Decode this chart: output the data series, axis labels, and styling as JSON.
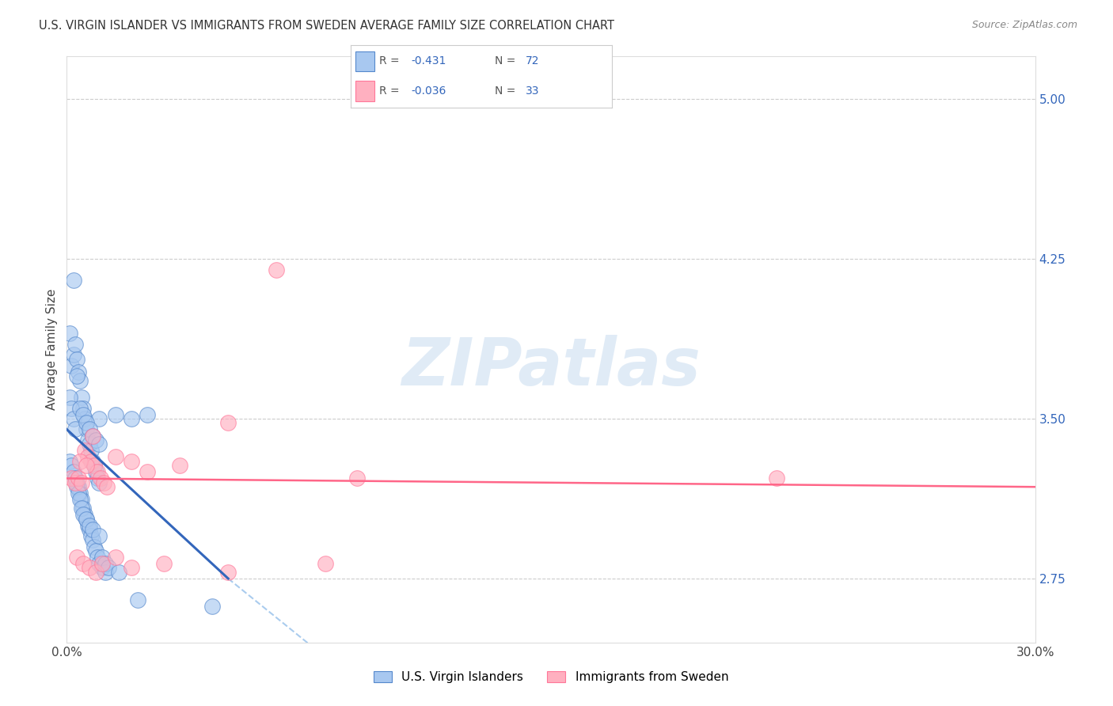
{
  "title": "U.S. VIRGIN ISLANDER VS IMMIGRANTS FROM SWEDEN AVERAGE FAMILY SIZE CORRELATION CHART",
  "source": "Source: ZipAtlas.com",
  "ylabel": "Average Family Size",
  "y_ticks_right": [
    2.75,
    3.5,
    4.25,
    5.0
  ],
  "xlim": [
    0.0,
    30.0
  ],
  "ylim": [
    2.45,
    5.2
  ],
  "legend_blue_r": "-0.431",
  "legend_blue_n": "72",
  "legend_pink_r": "-0.036",
  "legend_pink_n": "33",
  "legend_label_blue": "U.S. Virgin Islanders",
  "legend_label_pink": "Immigrants from Sweden",
  "blue_color": "#A8C8F0",
  "pink_color": "#FFB0C0",
  "blue_edge_color": "#5588CC",
  "pink_edge_color": "#FF7799",
  "blue_line_color": "#3366BB",
  "pink_line_color": "#FF6688",
  "blue_scatter_x": [
    0.1,
    0.15,
    0.2,
    0.25,
    0.3,
    0.35,
    0.4,
    0.45,
    0.5,
    0.55,
    0.6,
    0.65,
    0.7,
    0.75,
    0.8,
    0.85,
    0.9,
    0.95,
    1.0,
    0.1,
    0.15,
    0.2,
    0.25,
    0.3,
    0.35,
    0.4,
    0.45,
    0.5,
    0.55,
    0.6,
    0.65,
    0.7,
    0.75,
    0.8,
    0.85,
    0.9,
    0.95,
    1.0,
    1.1,
    1.2,
    0.1,
    0.15,
    0.2,
    0.25,
    0.3,
    0.35,
    0.4,
    0.45,
    0.5,
    0.6,
    0.7,
    0.8,
    1.0,
    1.5,
    2.0,
    2.5,
    1.0,
    0.2,
    0.3,
    0.4,
    0.5,
    0.6,
    0.7,
    0.8,
    0.9,
    1.0,
    1.1,
    1.2,
    1.3,
    1.6,
    2.2,
    4.5
  ],
  "blue_scatter_y": [
    3.9,
    3.75,
    3.8,
    3.85,
    3.78,
    3.72,
    3.68,
    3.6,
    3.55,
    3.5,
    3.45,
    3.4,
    3.38,
    3.35,
    3.3,
    3.28,
    3.25,
    3.22,
    3.2,
    3.6,
    3.55,
    3.5,
    3.45,
    3.2,
    3.18,
    3.15,
    3.12,
    3.08,
    3.05,
    3.03,
    3.0,
    2.98,
    2.95,
    2.93,
    2.9,
    2.88,
    2.85,
    2.82,
    2.8,
    2.78,
    3.3,
    3.28,
    3.25,
    3.22,
    3.18,
    3.15,
    3.12,
    3.08,
    3.05,
    3.03,
    3.0,
    2.98,
    2.95,
    3.52,
    3.5,
    3.52,
    3.5,
    4.15,
    3.7,
    3.55,
    3.52,
    3.48,
    3.45,
    3.42,
    3.4,
    3.38,
    2.85,
    2.82,
    2.8,
    2.78,
    2.65,
    2.62
  ],
  "pink_scatter_x": [
    0.15,
    0.25,
    0.35,
    0.45,
    0.55,
    0.65,
    0.75,
    0.85,
    0.95,
    1.05,
    1.15,
    1.25,
    1.5,
    2.0,
    2.5,
    3.5,
    5.0,
    6.5,
    9.0,
    0.3,
    0.5,
    0.7,
    0.9,
    1.1,
    1.5,
    2.0,
    3.0,
    5.0,
    8.0,
    22.0,
    0.4,
    0.6,
    0.8
  ],
  "pink_scatter_y": [
    3.22,
    3.2,
    3.22,
    3.2,
    3.35,
    3.32,
    3.3,
    3.28,
    3.25,
    3.22,
    3.2,
    3.18,
    3.32,
    3.3,
    3.25,
    3.28,
    3.48,
    4.2,
    3.22,
    2.85,
    2.82,
    2.8,
    2.78,
    2.82,
    2.85,
    2.8,
    2.82,
    2.78,
    2.82,
    3.22,
    3.3,
    3.28,
    3.42
  ],
  "watermark_text": "ZIPatlas",
  "background_color": "#FFFFFF",
  "grid_color": "#CCCCCC"
}
